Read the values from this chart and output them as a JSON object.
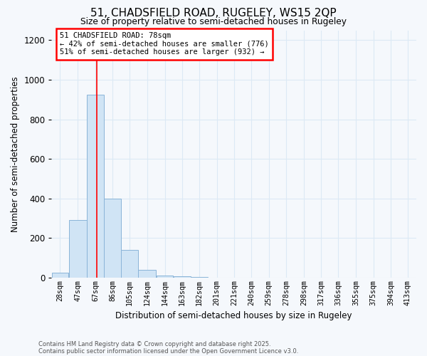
{
  "title1": "51, CHADSFIELD ROAD, RUGELEY, WS15 2QP",
  "title2": "Size of property relative to semi-detached houses in Rugeley",
  "xlabel": "Distribution of semi-detached houses by size in Rugeley",
  "ylabel": "Number of semi-detached properties",
  "bin_labels": [
    "28sqm",
    "47sqm",
    "67sqm",
    "86sqm",
    "105sqm",
    "124sqm",
    "144sqm",
    "163sqm",
    "182sqm",
    "201sqm",
    "221sqm",
    "240sqm",
    "259sqm",
    "278sqm",
    "298sqm",
    "317sqm",
    "336sqm",
    "355sqm",
    "375sqm",
    "394sqm",
    "413sqm"
  ],
  "bin_left_edges": [
    28,
    47,
    67,
    86,
    105,
    124,
    144,
    163,
    182,
    201,
    221,
    240,
    259,
    278,
    298,
    317,
    336,
    355,
    375,
    394,
    413
  ],
  "bin_widths": [
    19,
    20,
    19,
    19,
    19,
    20,
    19,
    19,
    19,
    20,
    19,
    19,
    19,
    20,
    19,
    19,
    19,
    20,
    19,
    19,
    19
  ],
  "bar_heights": [
    25,
    290,
    925,
    400,
    140,
    40,
    10,
    5,
    2,
    1,
    1,
    1,
    0,
    0,
    0,
    0,
    0,
    0,
    0,
    0,
    0
  ],
  "bar_color": "#d0e4f5",
  "bar_edge_color": "#8ab4d8",
  "red_line_x": 78,
  "ylim": [
    0,
    1250
  ],
  "yticks": [
    0,
    200,
    400,
    600,
    800,
    1000,
    1200
  ],
  "annotation_title": "51 CHADSFIELD ROAD: 78sqm",
  "annotation_line1": "← 42% of semi-detached houses are smaller (776)",
  "annotation_line2": "51% of semi-detached houses are larger (932) →",
  "footer1": "Contains HM Land Registry data © Crown copyright and database right 2025.",
  "footer2": "Contains public sector information licensed under the Open Government Licence v3.0.",
  "bg_color": "#f5f8fc",
  "plot_bg_color": "#f5f8fc",
  "grid_color": "#dce9f5"
}
